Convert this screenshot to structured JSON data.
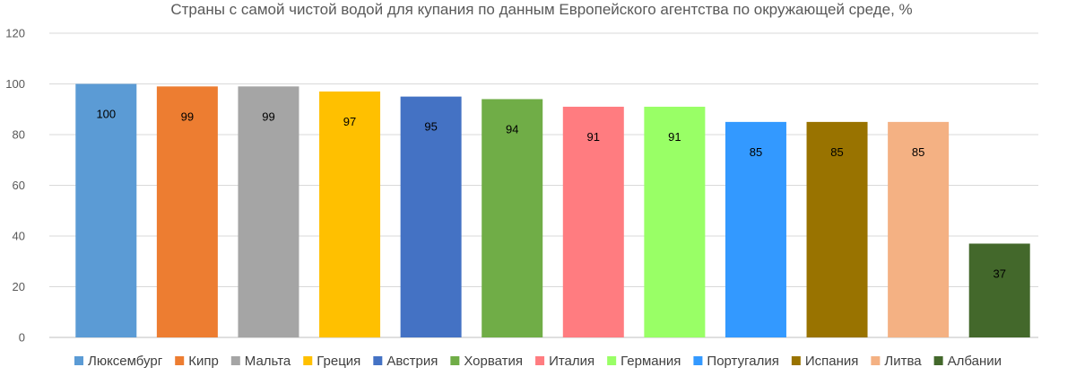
{
  "chart_data": {
    "type": "bar",
    "title": "Страны с самой чистой водой для купания по данным Европейского агентства по окружающей среде, %",
    "categories": [
      "Люксембург",
      "Кипр",
      "Мальта",
      "Греция",
      "Австрия",
      "Хорватия",
      "Италия",
      "Германия",
      "Португалия",
      "Испания",
      "Литва",
      "Албании"
    ],
    "values": [
      100,
      99,
      99,
      97,
      95,
      94,
      91,
      91,
      85,
      85,
      85,
      37
    ],
    "colors": [
      "#5b9bd5",
      "#ed7d31",
      "#a5a5a5",
      "#ffc000",
      "#4472c4",
      "#70ad47",
      "#ff7c80",
      "#99ff66",
      "#3399ff",
      "#997300",
      "#f4b183",
      "#43682b"
    ],
    "ylim": [
      0,
      120
    ],
    "yticks": [
      0,
      20,
      40,
      60,
      80,
      100,
      120
    ],
    "grid": true,
    "legend_position": "bottom",
    "data_labels": true
  }
}
